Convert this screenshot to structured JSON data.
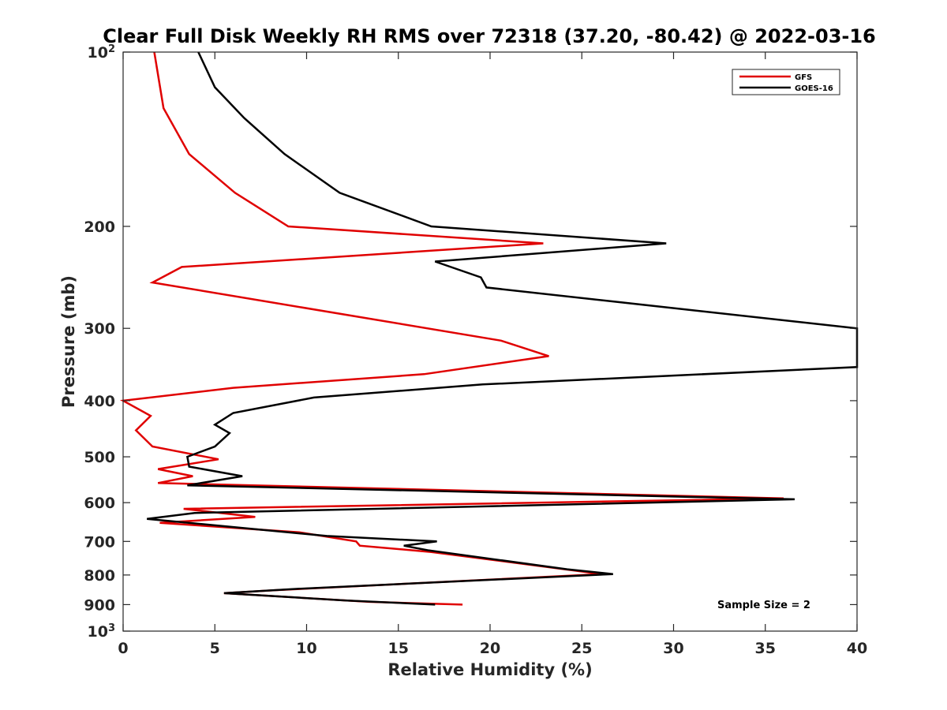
{
  "chart_data": {
    "type": "line",
    "title": "Clear Full Disk Weekly RH RMS over 72318 (37.20, -80.42) @ 2022-03-16",
    "xlabel": "Relative Humidity (%)",
    "ylabel": "Pressure (mb)",
    "xlim": [
      0,
      40
    ],
    "ylim": [
      100,
      1000
    ],
    "y_scale": "log",
    "y_reversed": true,
    "x_ticks": [
      "0",
      "5",
      "10",
      "15",
      "20",
      "25",
      "30",
      "35",
      "40"
    ],
    "y_ticks": [
      {
        "value": 100,
        "label": "10",
        "sup": "2"
      },
      {
        "value": 200,
        "label": "200",
        "sup": ""
      },
      {
        "value": 300,
        "label": "300",
        "sup": ""
      },
      {
        "value": 400,
        "label": "400",
        "sup": ""
      },
      {
        "value": 500,
        "label": "500",
        "sup": ""
      },
      {
        "value": 600,
        "label": "600",
        "sup": ""
      },
      {
        "value": 700,
        "label": "700",
        "sup": ""
      },
      {
        "value": 800,
        "label": "800",
        "sup": ""
      },
      {
        "value": 900,
        "label": "900",
        "sup": ""
      },
      {
        "value": 1000,
        "label": "10",
        "sup": "3"
      }
    ],
    "grid": false,
    "legend_position": "top-right",
    "annotation": "Sample Size = 2",
    "series": [
      {
        "name": "GFS",
        "color": "#e00000",
        "points": [
          [
            1.7,
            100
          ],
          [
            2.2,
            125
          ],
          [
            3.6,
            150
          ],
          [
            6.1,
            175
          ],
          [
            9.0,
            200
          ],
          [
            22.9,
            214
          ],
          [
            3.2,
            235
          ],
          [
            1.6,
            250
          ],
          [
            20.6,
            315
          ],
          [
            23.2,
            335
          ],
          [
            16.4,
            360
          ],
          [
            6.0,
            380
          ],
          [
            0.0,
            400
          ],
          [
            1.5,
            425
          ],
          [
            0.7,
            450
          ],
          [
            1.6,
            480
          ],
          [
            5.2,
            505
          ],
          [
            1.9,
            525
          ],
          [
            3.8,
            540
          ],
          [
            1.9,
            555
          ],
          [
            36.0,
            590
          ],
          [
            3.3,
            615
          ],
          [
            7.2,
            635
          ],
          [
            2.0,
            650
          ],
          [
            9.6,
            675
          ],
          [
            12.7,
            700
          ],
          [
            12.9,
            712
          ],
          [
            16.8,
            730
          ],
          [
            26.1,
            797
          ],
          [
            8.2,
            850
          ],
          [
            5.5,
            860
          ],
          [
            13.4,
            890
          ],
          [
            18.5,
            900
          ]
        ]
      },
      {
        "name": "GOES-16",
        "color": "#000000",
        "points": [
          [
            4.1,
            100
          ],
          [
            5.0,
            115
          ],
          [
            6.6,
            130
          ],
          [
            8.8,
            150
          ],
          [
            11.8,
            175
          ],
          [
            16.8,
            200
          ],
          [
            29.6,
            214
          ],
          [
            17.0,
            230
          ],
          [
            19.5,
            245
          ],
          [
            19.8,
            255
          ],
          [
            40.0,
            300
          ],
          [
            40.0,
            350
          ],
          [
            19.6,
            375
          ],
          [
            10.4,
            395
          ],
          [
            6.0,
            420
          ],
          [
            5.0,
            440
          ],
          [
            5.8,
            455
          ],
          [
            5.0,
            480
          ],
          [
            3.5,
            500
          ],
          [
            3.6,
            520
          ],
          [
            6.5,
            540
          ],
          [
            3.5,
            560
          ],
          [
            36.6,
            592
          ],
          [
            3.9,
            625
          ],
          [
            1.3,
            640
          ],
          [
            11.1,
            685
          ],
          [
            17.1,
            700
          ],
          [
            15.3,
            712
          ],
          [
            16.6,
            725
          ],
          [
            24.2,
            782
          ],
          [
            26.7,
            797
          ],
          [
            9.6,
            845
          ],
          [
            5.5,
            860
          ],
          [
            12.1,
            885
          ],
          [
            17.0,
            900
          ]
        ]
      }
    ]
  }
}
